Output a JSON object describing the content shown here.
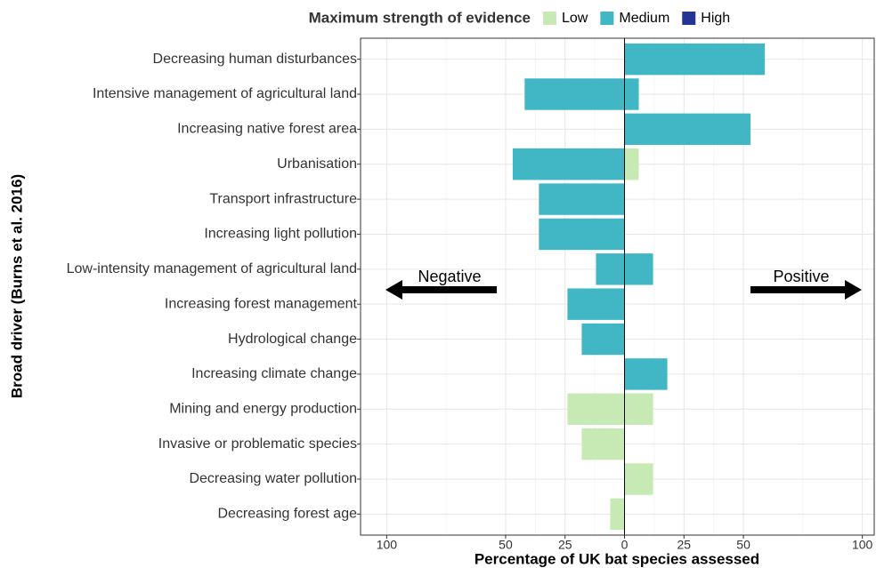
{
  "chart_data": {
    "type": "diverging-bar",
    "legend_title": "Maximum strength of evidence",
    "xlabel": "Percentage of UK bat species assessed",
    "ylabel": "Broad driver (Burns et al. 2016)",
    "annotations": [
      "Negative",
      "Positive"
    ],
    "categories": [
      "Decreasing human disturbances",
      "Intensive management of agricultural land",
      "Increasing native forest area",
      "Urbanisation",
      "Transport infrastructure",
      "Increasing light pollution",
      "Low-intensity management of agricultural land",
      "Increasing forest management",
      "Hydrological change",
      "Increasing climate change",
      "Mining and energy production",
      "Invasive or  problematic species",
      "Decreasing water pollution",
      "Decreasing forest age"
    ],
    "series": [
      {
        "name": "Low",
        "color": "#c7e9b4",
        "negative": [
          null,
          null,
          null,
          null,
          null,
          null,
          null,
          null,
          null,
          null,
          -24,
          -18,
          null,
          -6
        ],
        "positive": [
          null,
          null,
          null,
          6,
          null,
          null,
          null,
          null,
          null,
          null,
          12,
          null,
          12,
          null
        ]
      },
      {
        "name": "Medium",
        "color": "#41b6c4",
        "negative": [
          null,
          -42,
          null,
          -47,
          -36,
          -36,
          -12,
          -24,
          -18,
          null,
          null,
          null,
          null,
          null
        ],
        "positive": [
          59,
          6,
          53,
          null,
          null,
          null,
          12,
          null,
          null,
          18,
          null,
          null,
          null,
          null
        ]
      },
      {
        "name": "High",
        "color": "#253494"
      }
    ],
    "xlim": [
      -111,
      105
    ],
    "xticks": [
      {
        "value": -100,
        "label": "100"
      },
      {
        "value": -50,
        "label": "50"
      },
      {
        "value": -25,
        "label": "25"
      },
      0,
      25,
      50,
      100
    ],
    "grid": true
  }
}
